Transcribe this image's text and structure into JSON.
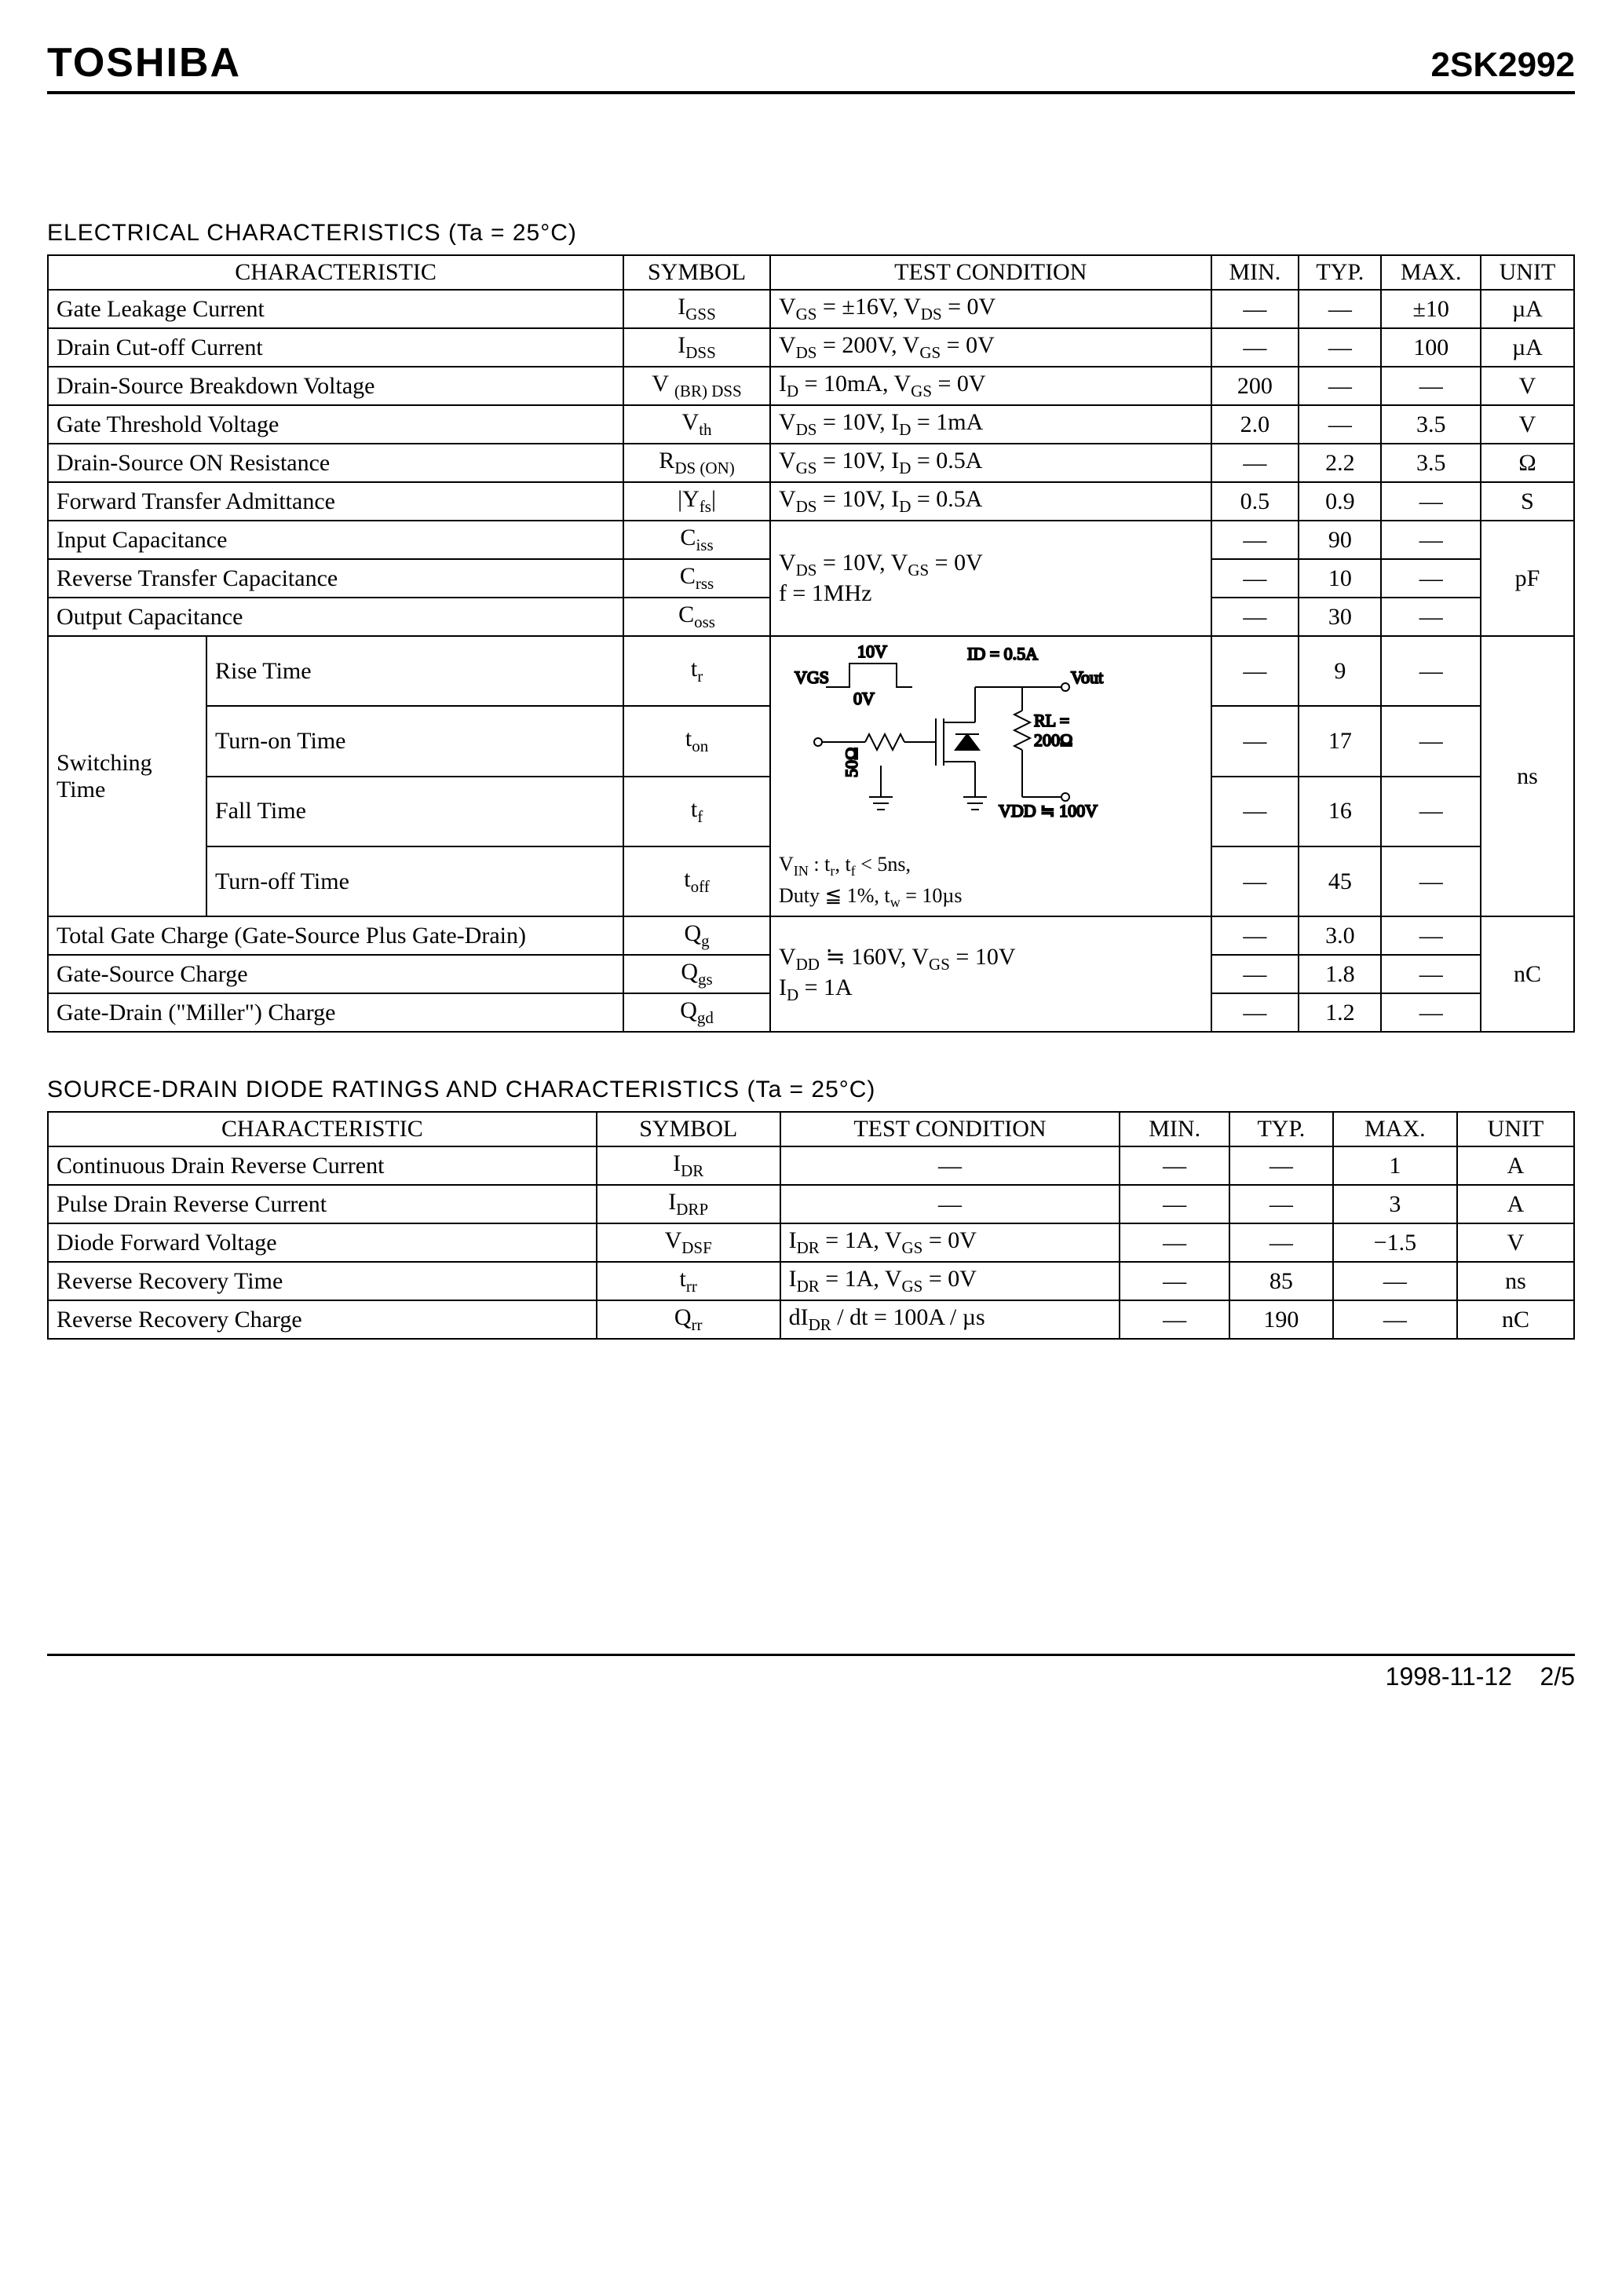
{
  "header": {
    "brand": "TOSHIBA",
    "part_number": "2SK2992"
  },
  "section1": {
    "title": "ELECTRICAL CHARACTERISTICS (Ta = 25°C)",
    "columns": [
      "CHARACTERISTIC",
      "SYMBOL",
      "TEST CONDITION",
      "MIN.",
      "TYP.",
      "MAX.",
      "UNIT"
    ],
    "rows": {
      "gate_leakage": {
        "char": "Gate Leakage Current",
        "sym": "I<sub>GSS</sub>",
        "cond": "V<sub>GS</sub> = ±16V, V<sub>DS</sub> = 0V",
        "min": "—",
        "typ": "—",
        "max": "±10",
        "unit": "µA"
      },
      "drain_cutoff": {
        "char": "Drain Cut-off Current",
        "sym": "I<sub>DSS</sub>",
        "cond": "V<sub>DS</sub> = 200V, V<sub>GS</sub> = 0V",
        "min": "—",
        "typ": "—",
        "max": "100",
        "unit": "µA"
      },
      "bvdss": {
        "char": "Drain-Source Breakdown Voltage",
        "sym": "V <sub>(BR) DSS</sub>",
        "cond": "I<sub>D</sub> = 10mA, V<sub>GS</sub> = 0V",
        "min": "200",
        "typ": "—",
        "max": "—",
        "unit": "V"
      },
      "vth": {
        "char": "Gate Threshold Voltage",
        "sym": "V<sub>th</sub>",
        "cond": "V<sub>DS</sub> = 10V, I<sub>D</sub> = 1mA",
        "min": "2.0",
        "typ": "—",
        "max": "3.5",
        "unit": "V"
      },
      "rdson": {
        "char": "Drain-Source ON Resistance",
        "sym": "R<sub>DS (ON)</sub>",
        "cond": "V<sub>GS</sub> = 10V, I<sub>D</sub> = 0.5A",
        "min": "—",
        "typ": "2.2",
        "max": "3.5",
        "unit": "Ω"
      },
      "yfs": {
        "char": "Forward Transfer Admittance",
        "sym": "|Y<sub>fs</sub>|",
        "cond": "V<sub>DS</sub> = 10V, I<sub>D</sub> = 0.5A",
        "min": "0.5",
        "typ": "0.9",
        "max": "—",
        "unit": "S"
      },
      "ciss": {
        "char": "Input Capacitance",
        "sym": "C<sub>iss</sub>",
        "min": "—",
        "typ": "90",
        "max": "—"
      },
      "crss": {
        "char": "Reverse Transfer Capacitance",
        "sym": "C<sub>rss</sub>",
        "min": "—",
        "typ": "10",
        "max": "—"
      },
      "coss": {
        "char": "Output Capacitance",
        "sym": "C<sub>oss</sub>",
        "min": "—",
        "typ": "30",
        "max": "—"
      },
      "cap_cond": "V<sub>DS</sub> = 10V, V<sub>GS</sub> = 0V<br>f = 1MHz",
      "cap_unit": "pF",
      "switching_label": "Switching Time",
      "tr": {
        "char": "Rise Time",
        "sym": "t<sub>r</sub>",
        "min": "—",
        "typ": "9",
        "max": "—"
      },
      "ton": {
        "char": "Turn-on Time",
        "sym": "t<sub>on</sub>",
        "min": "—",
        "typ": "17",
        "max": "—"
      },
      "tf": {
        "char": "Fall Time",
        "sym": "t<sub>f</sub>",
        "min": "—",
        "typ": "16",
        "max": "—"
      },
      "toff": {
        "char": "Turn-off Time",
        "sym": "t<sub>off</sub>",
        "min": "—",
        "typ": "45",
        "max": "—"
      },
      "switching_unit": "ns",
      "switching_cond_text": "V<sub>IN</sub> : t<sub>r</sub>, t<sub>f</sub> < 5ns,<br>Duty ≦ 1%, t<sub>w</sub> = 10µs",
      "switching_circuit_labels": {
        "vgs": "V<sub>GS</sub>",
        "v10": "10V",
        "v0": "0V",
        "id": "I<sub>D</sub> = 0.5A",
        "vout": "V<sub>out</sub>",
        "rs": "50Ω",
        "rl": "R<sub>L</sub> =<br>200Ω",
        "vdd": "V<sub>DD</sub> ≒ 100V"
      },
      "qg": {
        "char": "Total Gate Charge (Gate-Source Plus Gate-Drain)",
        "sym": "Q<sub>g</sub>",
        "min": "—",
        "typ": "3.0",
        "max": "—"
      },
      "qgs": {
        "char": "Gate-Source Charge",
        "sym": "Q<sub>gs</sub>",
        "min": "—",
        "typ": "1.8",
        "max": "—"
      },
      "qgd": {
        "char": "Gate-Drain (\"Miller\") Charge",
        "sym": "Q<sub>gd</sub>",
        "min": "—",
        "typ": "1.2",
        "max": "—"
      },
      "charge_cond": "V<sub>DD</sub> ≒ 160V, V<sub>GS</sub> = 10V<br>I<sub>D</sub> = 1A",
      "charge_unit": "nC"
    }
  },
  "section2": {
    "title": "SOURCE-DRAIN DIODE RATINGS AND CHARACTERISTICS (Ta = 25°C)",
    "columns": [
      "CHARACTERISTIC",
      "SYMBOL",
      "TEST CONDITION",
      "MIN.",
      "TYP.",
      "MAX.",
      "UNIT"
    ],
    "rows": {
      "idr": {
        "char": "Continuous Drain Reverse Current",
        "sym": "I<sub>DR</sub>",
        "cond": "—",
        "min": "—",
        "typ": "—",
        "max": "1",
        "unit": "A"
      },
      "idrp": {
        "char": "Pulse Drain Reverse Current",
        "sym": "I<sub>DRP</sub>",
        "cond": "—",
        "min": "—",
        "typ": "—",
        "max": "3",
        "unit": "A"
      },
      "vdsf": {
        "char": "Diode Forward Voltage",
        "sym": "V<sub>DSF</sub>",
        "cond": "I<sub>DR</sub> = 1A, V<sub>GS</sub> = 0V",
        "min": "—",
        "typ": "—",
        "max": "−1.5",
        "unit": "V"
      },
      "trr": {
        "char": "Reverse Recovery Time",
        "sym": "t<sub>rr</sub>",
        "cond": "I<sub>DR</sub> = 1A, V<sub>GS</sub> = 0V",
        "min": "—",
        "typ": "85",
        "max": "—",
        "unit": "ns"
      },
      "qrr": {
        "char": "Reverse Recovery Charge",
        "sym": "Q<sub>rr</sub>",
        "cond": "dI<sub>DR</sub> / dt = 100A / µs",
        "min": "—",
        "typ": "190",
        "max": "—",
        "unit": "nC"
      }
    }
  },
  "footer": {
    "date": "1998-11-12",
    "page": "2/5"
  },
  "style": {
    "border_color": "#000000",
    "background": "#ffffff",
    "font_body": "Times New Roman",
    "font_head": "Arial",
    "table_font_size_pt": 30,
    "brand_font_size_pt": 52,
    "part_font_size_pt": 44
  }
}
